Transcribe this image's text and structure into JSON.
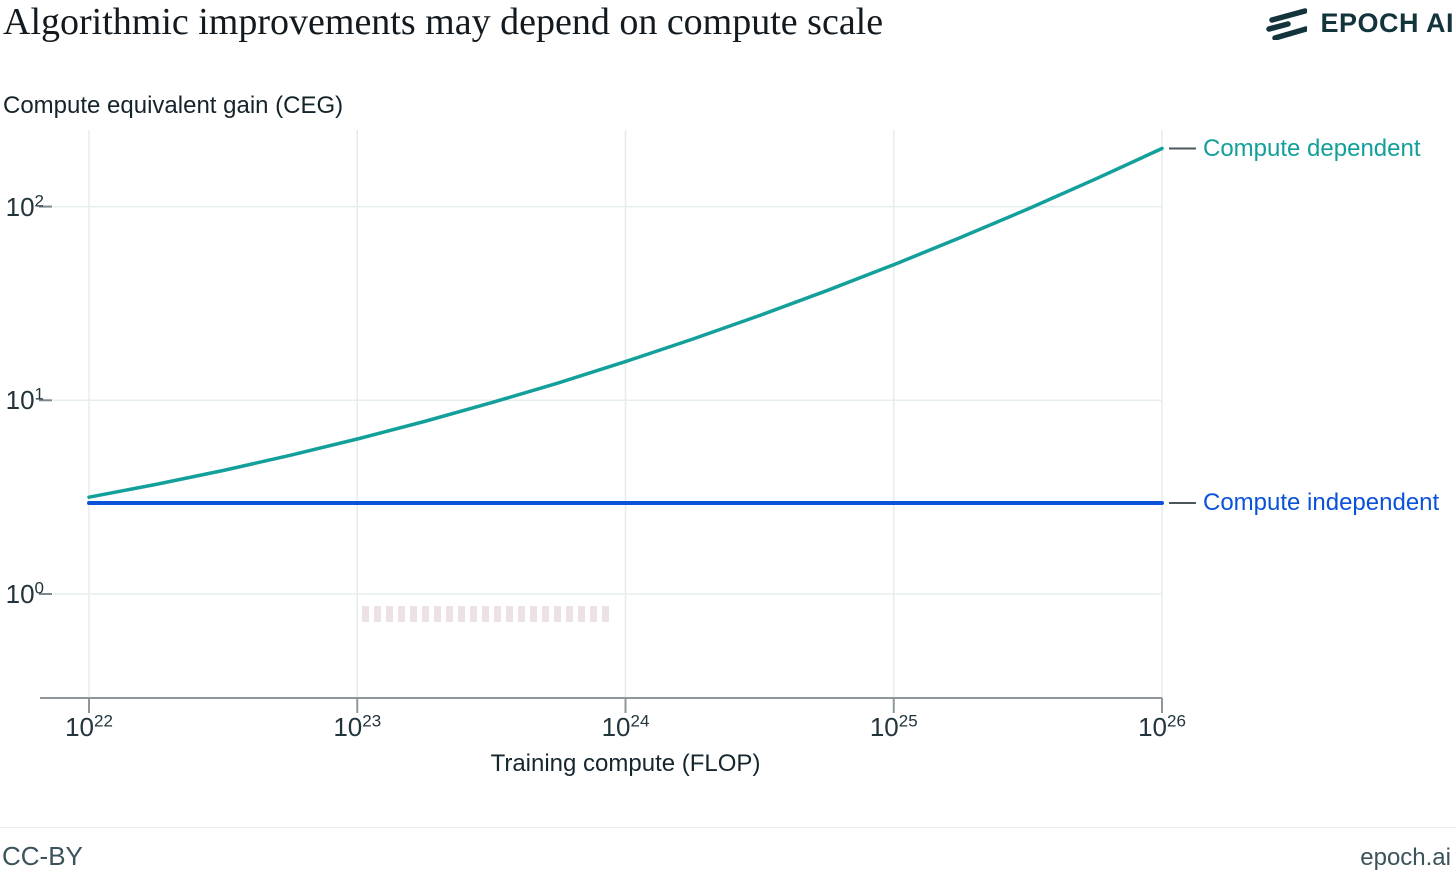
{
  "header": {
    "title": "Algorithmic improvements may depend on compute scale",
    "brand": "EPOCH AI",
    "brand_color": "#13343b"
  },
  "chart": {
    "y_axis_title": "Compute equivalent gain (CEG)",
    "x_axis_title": "Training compute (FLOP)",
    "x_ticks": [
      {
        "base": "10",
        "exp": "22"
      },
      {
        "base": "10",
        "exp": "23"
      },
      {
        "base": "10",
        "exp": "24"
      },
      {
        "base": "10",
        "exp": "25"
      },
      {
        "base": "10",
        "exp": "26"
      }
    ],
    "y_ticks": [
      {
        "base": "10",
        "exp": "2"
      },
      {
        "base": "10",
        "exp": "1"
      },
      {
        "base": "10",
        "exp": "0"
      }
    ],
    "series_labels": [
      {
        "text": "Compute dependent"
      },
      {
        "text": "Compute independent"
      }
    ]
  },
  "chart_data": {
    "type": "line",
    "title": "Algorithmic improvements may depend on compute scale",
    "xlabel": "Training compute (FLOP)",
    "ylabel": "Compute equivalent gain (CEG)",
    "xscale": "log",
    "yscale": "log",
    "xlim_log10": [
      22,
      26
    ],
    "ylim_log10": [
      -0.54,
      2.4
    ],
    "x_ticks_log10": [
      22,
      23,
      24,
      25,
      26
    ],
    "y_ticks_log10": [
      2,
      1,
      0
    ],
    "grid": true,
    "legend_position": "right-edge-labels",
    "x_log10": [
      22,
      22.25,
      22.5,
      22.75,
      23,
      23.25,
      23.5,
      23.75,
      24,
      24.25,
      24.5,
      24.75,
      25,
      25.25,
      25.5,
      25.75,
      26
    ],
    "series": [
      {
        "name": "Compute dependent",
        "color": "#14a09a",
        "values": [
          3.16,
          3.68,
          4.34,
          5.2,
          6.31,
          7.77,
          9.72,
          12.3,
          15.85,
          20.7,
          27.4,
          36.8,
          50.1,
          69.3,
          97.2,
          138.3,
          199.5
        ]
      },
      {
        "name": "Compute independent",
        "color": "#0b52da",
        "x_log10": [
          22,
          26
        ],
        "values": [
          2.95,
          2.95
        ]
      }
    ],
    "colors": {
      "gridline": "#e5edeb",
      "axis_line": "#8e989b",
      "tick_dash": "#7b8a8e",
      "label_connector": "#4c575c"
    }
  },
  "footer": {
    "license": "CC-BY",
    "site": "epoch.ai"
  }
}
